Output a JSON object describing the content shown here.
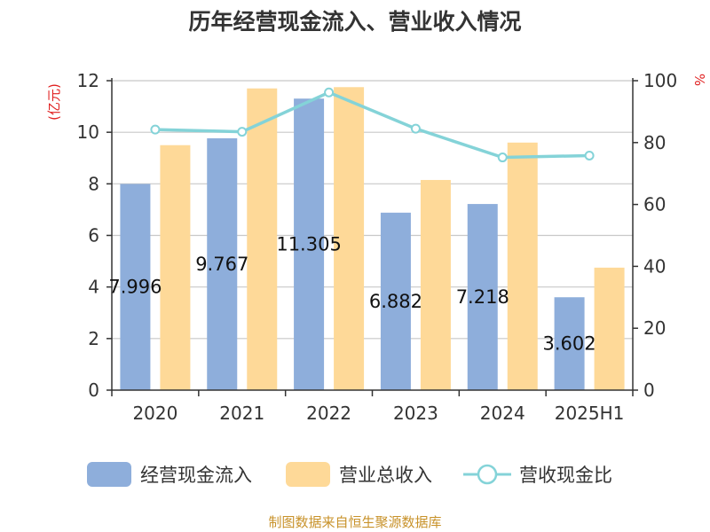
{
  "chart_data": {
    "type": "bar",
    "title": "历年经营现金流入、营业收入情况",
    "categories": [
      "2020",
      "2021",
      "2022",
      "2023",
      "2024",
      "2025H1"
    ],
    "series": [
      {
        "name": "经营现金流入",
        "type": "bar",
        "axis": "left",
        "color": "#8eaedb",
        "values": [
          7.996,
          9.767,
          11.305,
          6.882,
          7.218,
          3.602
        ],
        "labels": [
          "7.996",
          "9.767",
          "11.305",
          "6.882",
          "7.218",
          "3.602"
        ]
      },
      {
        "name": "营业总收入",
        "type": "bar",
        "axis": "left",
        "color": "#fed998",
        "values": [
          9.5,
          11.7,
          11.75,
          8.15,
          9.6,
          4.75
        ]
      },
      {
        "name": "营收现金比",
        "type": "line",
        "axis": "right",
        "color": "#84d3d8",
        "values": [
          84.2,
          83.5,
          96.2,
          84.5,
          75.2,
          75.8
        ]
      }
    ],
    "y_left": {
      "unit": "(亿元)",
      "ylim": [
        0,
        12
      ],
      "ticks": [
        0,
        2,
        4,
        6,
        8,
        10,
        12
      ]
    },
    "y_right": {
      "unit": "%",
      "ylim": [
        0,
        100
      ],
      "ticks": [
        0,
        20,
        40,
        60,
        80,
        100
      ]
    },
    "grid": true,
    "legend": "bottom"
  },
  "footer": {
    "source": "制图数据来自恒生聚源数据库"
  }
}
